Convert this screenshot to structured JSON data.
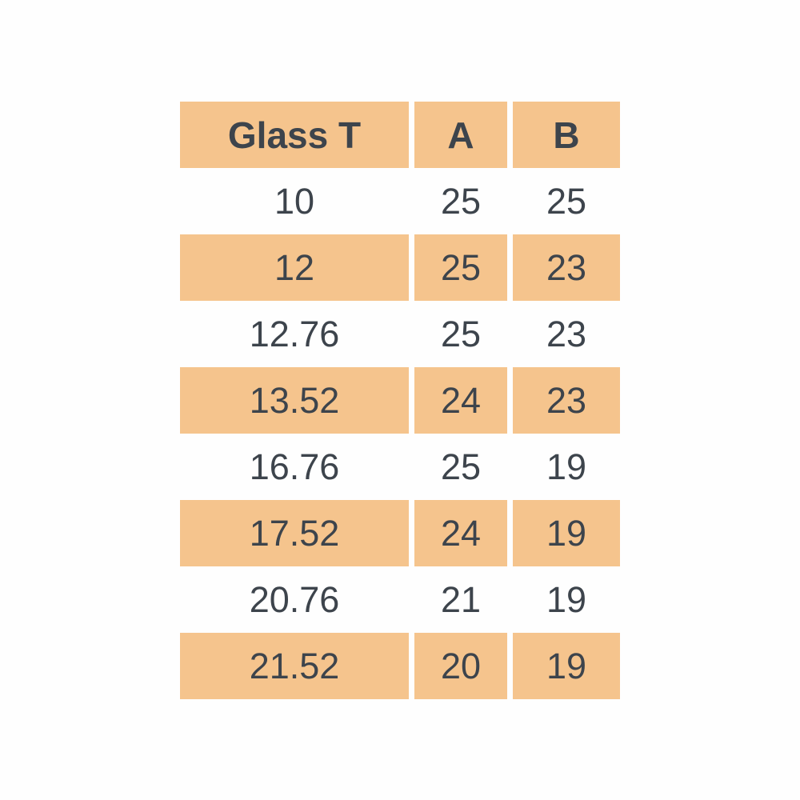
{
  "chart_data": {
    "type": "table",
    "title": "",
    "columns": [
      "Glass T",
      "A",
      "B"
    ],
    "rows": [
      [
        "10",
        "25",
        "25"
      ],
      [
        "12",
        "25",
        "23"
      ],
      [
        "12.76",
        "25",
        "23"
      ],
      [
        "13.52",
        "24",
        "23"
      ],
      [
        "16.76",
        "25",
        "19"
      ],
      [
        "17.52",
        "24",
        "19"
      ],
      [
        "20.76",
        "21",
        "19"
      ],
      [
        "21.52",
        "20",
        "19"
      ]
    ],
    "layout": {
      "banding": "header and alternate rows filled, starting with row 2",
      "alignment": "center"
    }
  },
  "colors": {
    "band_fill": "#f5c48d",
    "row_background": "#fefefe",
    "text": "#3d444c"
  }
}
